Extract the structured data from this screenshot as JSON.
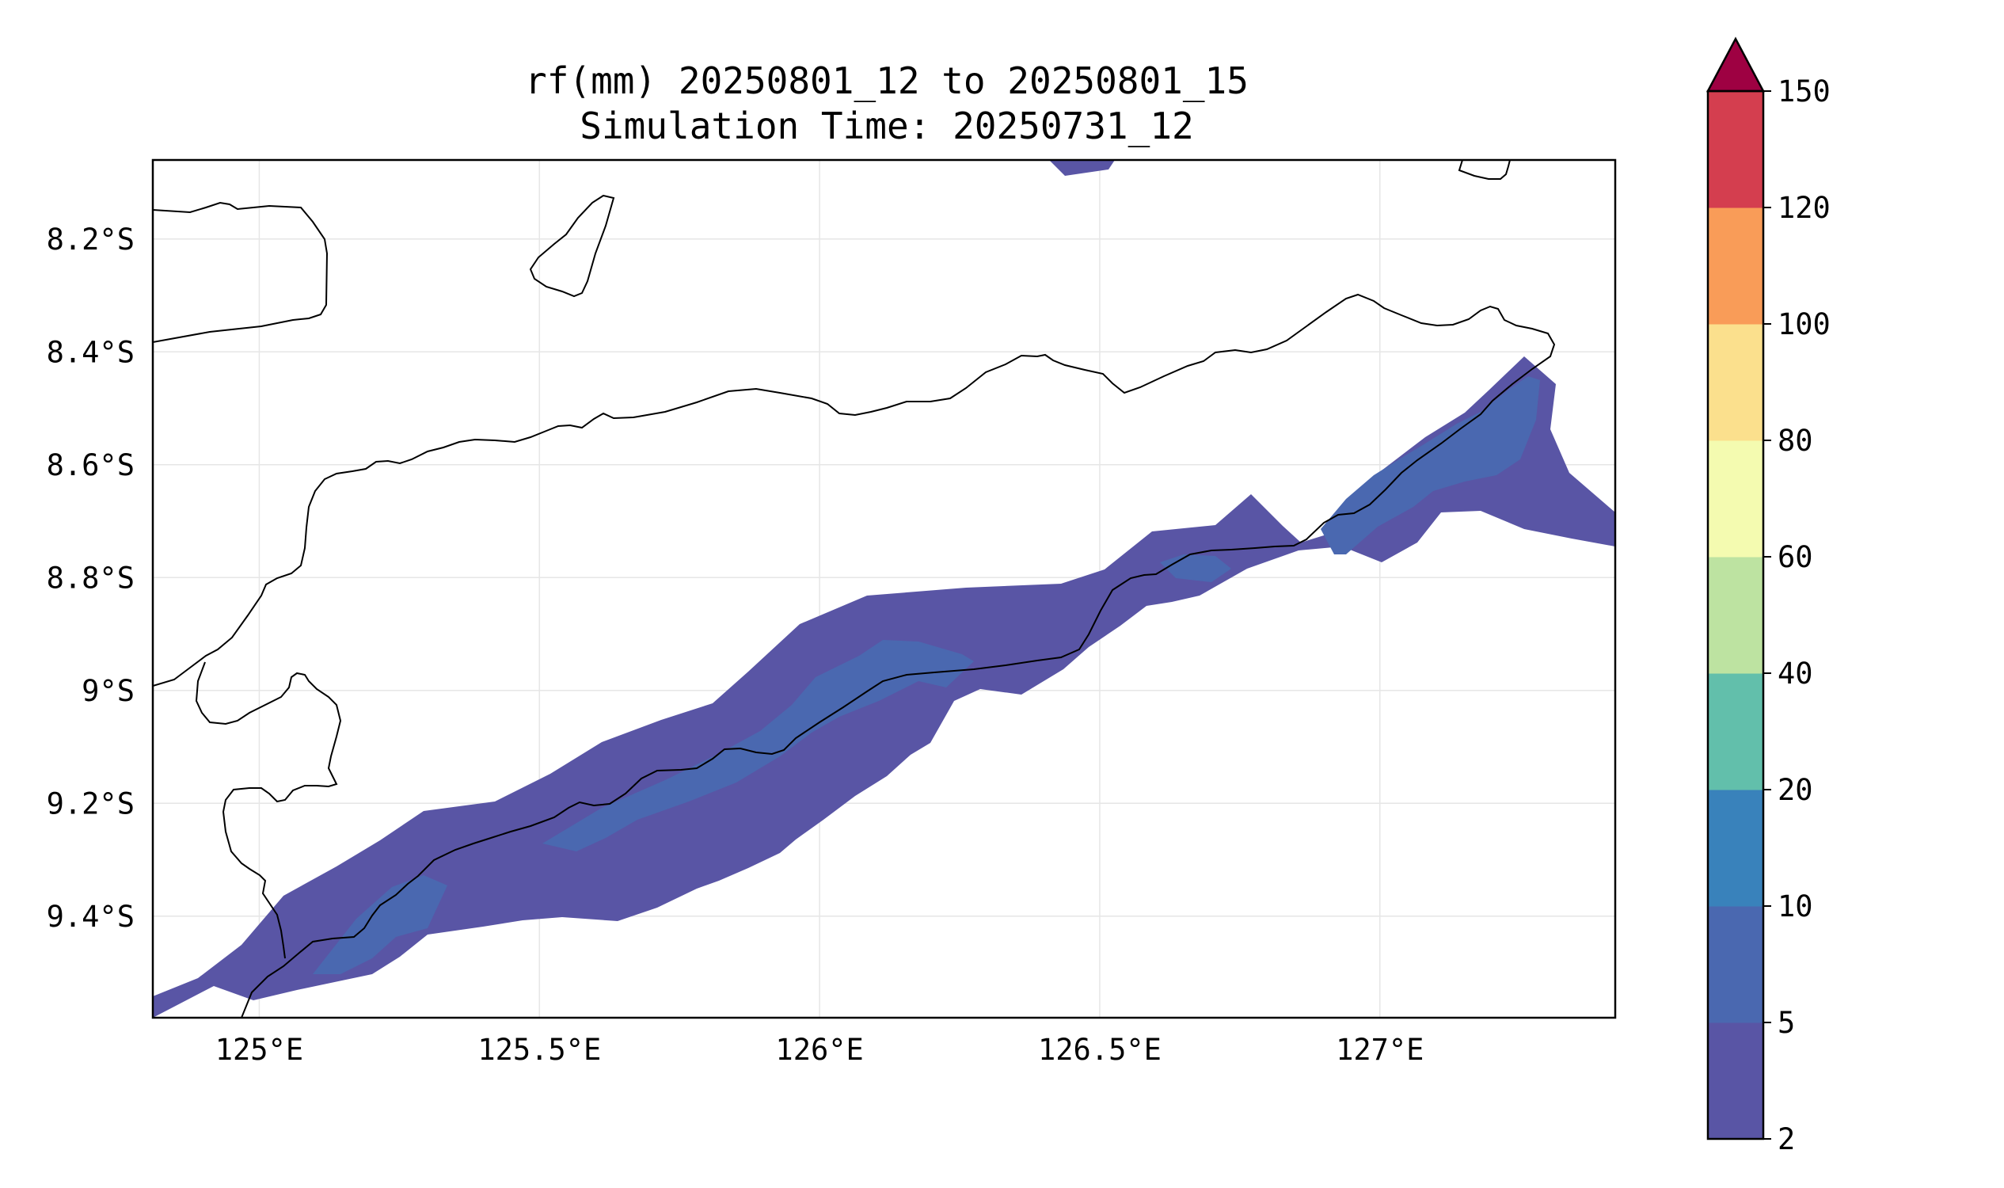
{
  "title": {
    "line1": "rf(mm) 20250801_12 to 20250801_15",
    "line2": "Simulation Time: 20250731_12"
  },
  "map": {
    "lon_range": [
      124.81,
      127.42
    ],
    "lat_range": [
      -9.58,
      -8.06
    ],
    "gridlines": true,
    "lon_ticks": [
      {
        "value": 125.0,
        "label": "125°E"
      },
      {
        "value": 125.5,
        "label": "125.5°E"
      },
      {
        "value": 126.0,
        "label": "126°E"
      },
      {
        "value": 126.5,
        "label": "126.5°E"
      },
      {
        "value": 127.0,
        "label": "127°E"
      }
    ],
    "lat_ticks": [
      {
        "value": -8.2,
        "label": "8.2°S"
      },
      {
        "value": -8.4,
        "label": "8.4°S"
      },
      {
        "value": -8.6,
        "label": "8.6°S"
      },
      {
        "value": -8.8,
        "label": "8.8°S"
      },
      {
        "value": -9.0,
        "label": "9°S"
      },
      {
        "value": -9.2,
        "label": "9.2°S"
      },
      {
        "value": -9.4,
        "label": "9.4°S"
      }
    ],
    "coastline_color": "#000000"
  },
  "colorbar": {
    "levels": [
      {
        "value": 2,
        "label": "2"
      },
      {
        "value": 5,
        "label": "5"
      },
      {
        "value": 10,
        "label": "10"
      },
      {
        "value": 20,
        "label": "20"
      },
      {
        "value": 40,
        "label": "40"
      },
      {
        "value": 60,
        "label": "60"
      },
      {
        "value": 80,
        "label": "80"
      },
      {
        "value": 100,
        "label": "100"
      },
      {
        "value": 120,
        "label": "120"
      },
      {
        "value": 150,
        "label": "150"
      }
    ],
    "colors": [
      "#5955a5",
      "#4a68b0",
      "#3982bb",
      "#62bfab",
      "#bde3a1",
      "#f4fbb0",
      "#fbe08d",
      "#f99c58",
      "#d43e4f"
    ],
    "extend_color": "#9e0142"
  },
  "rain_colors": {
    "light": "#5955a5",
    "moderate": "#4a68b0"
  }
}
